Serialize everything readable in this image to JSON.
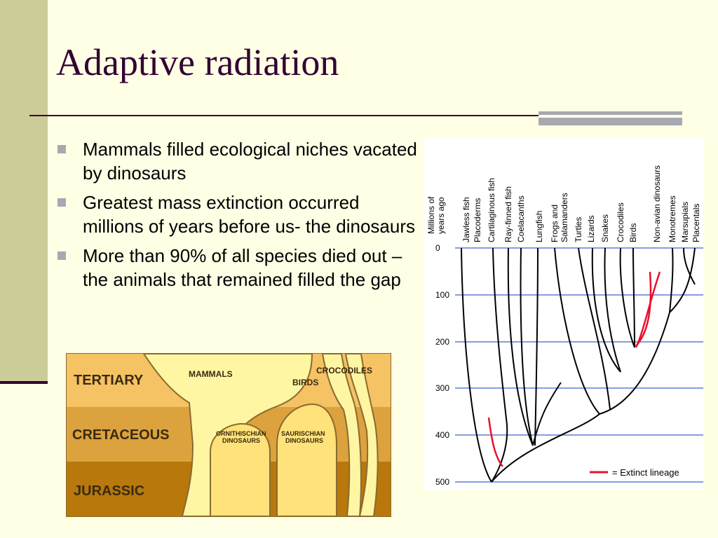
{
  "slide": {
    "title": "Adaptive radiation",
    "accent_color": "#330033",
    "bullets": [
      "Mammals filled ecological niches vacated by dinosaurs",
      "Greatest mass extinction occurred millions of years before us- the dinosaurs",
      "More than 90% of all species died out – the animals that remained filled the gap"
    ]
  },
  "strata_figure": {
    "periods": [
      "TERTIARY",
      "CRETACEOUS",
      "JURASSIC"
    ],
    "groups": [
      "MAMMALS",
      "BIRDS",
      "CROCODILES",
      "ORNITHISCHIAN",
      "DINOSAURS",
      "SAURISCHIAN",
      "DINOSAURS"
    ]
  },
  "phylogeny": {
    "axis_title": [
      "Millions of",
      "years ago"
    ],
    "ticks": [
      "0",
      "100",
      "200",
      "300",
      "400",
      "500"
    ],
    "taxa": [
      "Jawless fish",
      "Placoderms",
      "Cartilaginous fish",
      "Ray-finned fish",
      "Coelacanths",
      "Lungfish",
      "Frogs and",
      "Salamanders",
      "Turtles",
      "Lizards",
      "Snakes",
      "Crocodiles",
      "Birds",
      "Non-avian dinosaurs",
      "Monotremes",
      "Marsupials",
      "Placentals"
    ],
    "legend": "= Extinct lineage",
    "extinct_color": "#e8102c",
    "grid_color": "#5b7fd6"
  }
}
